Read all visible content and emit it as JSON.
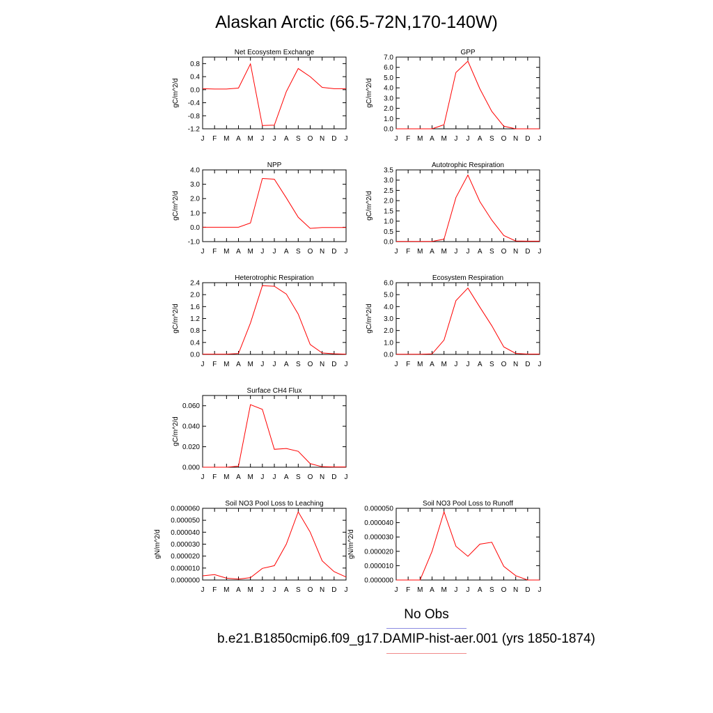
{
  "title": "Alaskan Arctic (66.5-72N,170-140W)",
  "legend": {
    "obs_label": "No Obs",
    "case_label": "b.e21.B1850cmip6.f09_g17.DAMIP-hist-aer.001 (yrs 1850-1874)",
    "obs_color": "#8a8ae0",
    "case_color": "#f08a8a"
  },
  "chart_data": [
    {
      "type": "line",
      "title": "Net Ecosystem Exchange",
      "ylabel": "gC/m^2/d",
      "categories": [
        "J",
        "F",
        "M",
        "A",
        "M",
        "J",
        "J",
        "A",
        "S",
        "O",
        "N",
        "D",
        "J"
      ],
      "ylim": [
        -1.2,
        1.0
      ],
      "yticks": [
        "0.8",
        "0.4",
        "0.0",
        "-0.4",
        "-0.8",
        "-1.2"
      ],
      "yticks_vals": [
        0.8,
        0.4,
        0.0,
        -0.4,
        -0.8,
        -1.2
      ],
      "values": [
        0.03,
        0.02,
        0.02,
        0.05,
        0.79,
        -1.1,
        -1.09,
        -0.06,
        0.65,
        0.4,
        0.07,
        0.03,
        0.03
      ],
      "color": "#ff0000"
    },
    {
      "type": "line",
      "title": "GPP",
      "ylabel": "gC/m^2/d",
      "categories": [
        "J",
        "F",
        "M",
        "A",
        "M",
        "J",
        "J",
        "A",
        "S",
        "O",
        "N",
        "D",
        "J"
      ],
      "ylim": [
        0,
        7.0
      ],
      "yticks": [
        "7.0",
        "6.0",
        "5.0",
        "4.0",
        "3.0",
        "2.0",
        "1.0",
        "0.0"
      ],
      "yticks_vals": [
        7,
        6,
        5,
        4,
        3,
        2,
        1,
        0
      ],
      "values": [
        0.0,
        0.0,
        0.0,
        0.0,
        0.4,
        5.5,
        6.6,
        3.9,
        1.7,
        0.25,
        0.0,
        0.0,
        0.0
      ],
      "color": "#ff0000"
    },
    {
      "type": "line",
      "title": "NPP",
      "ylabel": "gC/m^2/d",
      "categories": [
        "J",
        "F",
        "M",
        "A",
        "M",
        "J",
        "J",
        "A",
        "S",
        "O",
        "N",
        "D",
        "J"
      ],
      "ylim": [
        -1.0,
        4.0
      ],
      "yticks": [
        "4.0",
        "3.0",
        "2.0",
        "1.0",
        "0.0",
        "-1.0"
      ],
      "yticks_vals": [
        4,
        3,
        2,
        1,
        0,
        -1
      ],
      "values": [
        0.0,
        0.0,
        0.0,
        0.0,
        0.3,
        3.4,
        3.35,
        2.05,
        0.7,
        -0.08,
        -0.02,
        -0.02,
        -0.02
      ],
      "color": "#ff0000"
    },
    {
      "type": "line",
      "title": "Autotrophic Respiration",
      "ylabel": "gC/m^2/d",
      "categories": [
        "J",
        "F",
        "M",
        "A",
        "M",
        "J",
        "J",
        "A",
        "S",
        "O",
        "N",
        "D",
        "J"
      ],
      "ylim": [
        0,
        3.5
      ],
      "yticks": [
        "3.5",
        "3.0",
        "2.5",
        "2.0",
        "1.5",
        "1.0",
        "0.5",
        "0.0"
      ],
      "yticks_vals": [
        3.5,
        3.0,
        2.5,
        2.0,
        1.5,
        1.0,
        0.5,
        0.0
      ],
      "values": [
        0.01,
        0.01,
        0.01,
        0.01,
        0.12,
        2.15,
        3.25,
        1.95,
        1.05,
        0.3,
        0.03,
        0.02,
        0.02
      ],
      "color": "#ff0000"
    },
    {
      "type": "line",
      "title": "Heterotrophic Respiration",
      "ylabel": "gC/m^2/d",
      "categories": [
        "J",
        "F",
        "M",
        "A",
        "M",
        "J",
        "J",
        "A",
        "S",
        "O",
        "N",
        "D",
        "J"
      ],
      "ylim": [
        0,
        2.4
      ],
      "yticks": [
        "2.4",
        "2.0",
        "1.6",
        "1.2",
        "0.8",
        "0.4",
        "0.0"
      ],
      "yticks_vals": [
        2.4,
        2.0,
        1.6,
        1.2,
        0.8,
        0.4,
        0.0
      ],
      "values": [
        0.01,
        0.01,
        0.01,
        0.03,
        1.05,
        2.3,
        2.28,
        2.02,
        1.35,
        0.33,
        0.05,
        0.02,
        0.01
      ],
      "color": "#ff0000"
    },
    {
      "type": "line",
      "title": "Ecosystem Respiration",
      "ylabel": "gC/m^2/d",
      "categories": [
        "J",
        "F",
        "M",
        "A",
        "M",
        "J",
        "J",
        "A",
        "S",
        "O",
        "N",
        "D",
        "J"
      ],
      "ylim": [
        0,
        6.0
      ],
      "yticks": [
        "6.0",
        "5.0",
        "4.0",
        "3.0",
        "2.0",
        "1.0",
        "0.0"
      ],
      "yticks_vals": [
        6,
        5,
        4,
        3,
        2,
        1,
        0
      ],
      "values": [
        0.02,
        0.02,
        0.02,
        0.04,
        1.2,
        4.5,
        5.55,
        3.95,
        2.4,
        0.63,
        0.08,
        0.03,
        0.03
      ],
      "color": "#ff0000"
    },
    {
      "type": "line",
      "title": "Surface CH4 Flux",
      "ylabel": "gC/m^2/d",
      "categories": [
        "J",
        "F",
        "M",
        "A",
        "M",
        "J",
        "J",
        "A",
        "S",
        "O",
        "N",
        "D",
        "J"
      ],
      "ylim": [
        0,
        0.07
      ],
      "yticks": [
        "0.060",
        "0.040",
        "0.020",
        "0.000"
      ],
      "yticks_vals": [
        0.06,
        0.04,
        0.02,
        0.0
      ],
      "values": [
        0.0,
        0.0,
        0.0,
        0.001,
        0.061,
        0.0565,
        0.0175,
        0.0183,
        0.0155,
        0.0035,
        0.0005,
        0.0003,
        0.0003
      ],
      "color": "#ff0000"
    },
    {
      "type": "line",
      "title": "Soil NO3 Pool Loss to Leaching",
      "ylabel": "gN/m^2/d",
      "categories": [
        "J",
        "F",
        "M",
        "A",
        "M",
        "J",
        "J",
        "A",
        "S",
        "O",
        "N",
        "D",
        "J"
      ],
      "ylim": [
        0,
        6e-05
      ],
      "yticks": [
        "0.000060",
        "0.000050",
        "0.000040",
        "0.000030",
        "0.000020",
        "0.000010",
        "0.000000"
      ],
      "yticks_vals": [
        6e-05,
        5e-05,
        4e-05,
        3e-05,
        2e-05,
        1e-05,
        0.0
      ],
      "values": [
        3.5e-06,
        4.5e-06,
        1.5e-06,
        8e-07,
        2e-06,
        9.7e-06,
        1.2e-05,
        3e-05,
        5.7e-05,
        4e-05,
        1.6e-05,
        7e-06,
        2.5e-06
      ],
      "color": "#ff0000"
    },
    {
      "type": "line",
      "title": "Soil NO3 Pool Loss to Runoff",
      "ylabel": "gN/m^2/d",
      "categories": [
        "J",
        "F",
        "M",
        "A",
        "M",
        "J",
        "J",
        "A",
        "S",
        "O",
        "N",
        "D",
        "J"
      ],
      "ylim": [
        0,
        5e-05
      ],
      "yticks": [
        "0.000050",
        "0.000040",
        "0.000030",
        "0.000020",
        "0.000010",
        "0.000000"
      ],
      "yticks_vals": [
        5e-05,
        4e-05,
        3e-05,
        2e-05,
        1e-05,
        0.0
      ],
      "values": [
        0.0,
        0.0,
        0.0,
        2e-05,
        4.75e-05,
        2.35e-05,
        1.65e-05,
        2.5e-05,
        2.63e-05,
        9.5e-06,
        3e-06,
        0.0,
        0.0
      ],
      "color": "#ff0000"
    }
  ]
}
